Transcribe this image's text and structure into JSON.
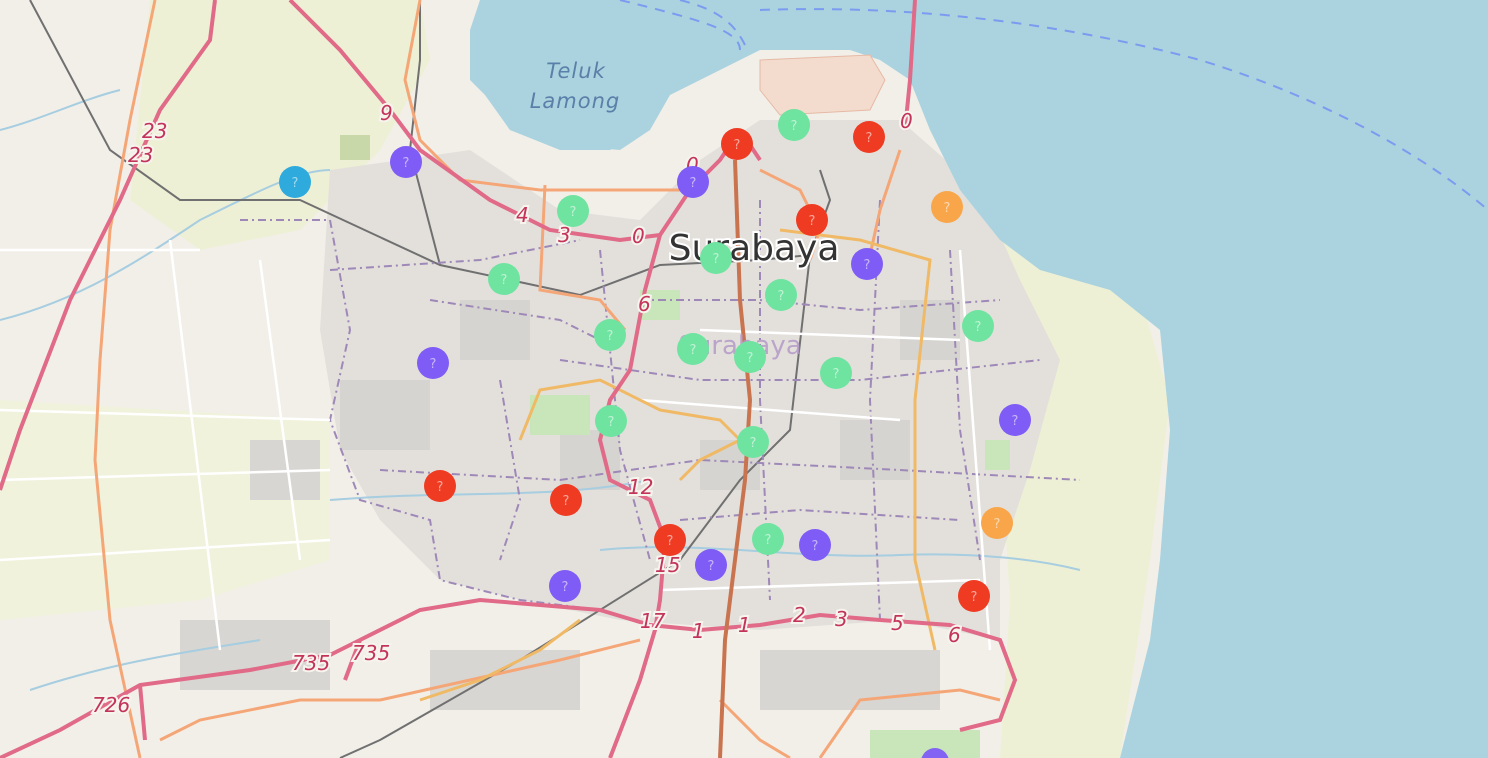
{
  "map": {
    "city_label": "Surabaya",
    "district_label": "Surabaya",
    "bay_label_line1": "Teluk",
    "bay_label_line2": "Lamong",
    "road_labels": [
      "9",
      "23",
      "23",
      "4",
      "3",
      "0",
      "6",
      "0",
      "0",
      "12",
      "15",
      "17",
      "1",
      "1",
      "2",
      "3",
      "5",
      "6",
      "735",
      "735",
      "726"
    ],
    "marker_colors": {
      "red": "#ee3b22",
      "purple": "#7f5cf5",
      "green": "#6fe3a0",
      "orange": "#f9a64a",
      "blue": "#2eaadc"
    },
    "markers": [
      {
        "color": "blue",
        "glyph": "?"
      },
      {
        "color": "purple",
        "glyph": "?"
      },
      {
        "color": "red",
        "glyph": "?"
      },
      {
        "color": "green",
        "glyph": "?"
      },
      {
        "color": "red",
        "glyph": "?"
      },
      {
        "color": "purple",
        "glyph": "?"
      },
      {
        "color": "red",
        "glyph": "?"
      },
      {
        "color": "orange",
        "glyph": "?"
      },
      {
        "color": "green",
        "glyph": "?"
      },
      {
        "color": "green",
        "glyph": "?"
      },
      {
        "color": "purple",
        "glyph": "?"
      },
      {
        "color": "green",
        "glyph": "?"
      },
      {
        "color": "green",
        "glyph": "?"
      },
      {
        "color": "green",
        "glyph": "?"
      },
      {
        "color": "purple",
        "glyph": "?"
      },
      {
        "color": "green",
        "glyph": "?"
      },
      {
        "color": "green",
        "glyph": "?"
      },
      {
        "color": "green",
        "glyph": "?"
      },
      {
        "color": "green",
        "glyph": "?"
      },
      {
        "color": "green",
        "glyph": "?"
      },
      {
        "color": "purple",
        "glyph": "?"
      },
      {
        "color": "green",
        "glyph": "?"
      },
      {
        "color": "red",
        "glyph": "?"
      },
      {
        "color": "red",
        "glyph": "?"
      },
      {
        "color": "red",
        "glyph": "?"
      },
      {
        "color": "purple",
        "glyph": "?"
      },
      {
        "color": "green",
        "glyph": "?"
      },
      {
        "color": "purple",
        "glyph": "?"
      },
      {
        "color": "orange",
        "glyph": "?"
      },
      {
        "color": "red",
        "glyph": "?"
      },
      {
        "color": "purple",
        "glyph": "?"
      },
      {
        "color": "green",
        "glyph": "?"
      }
    ]
  }
}
